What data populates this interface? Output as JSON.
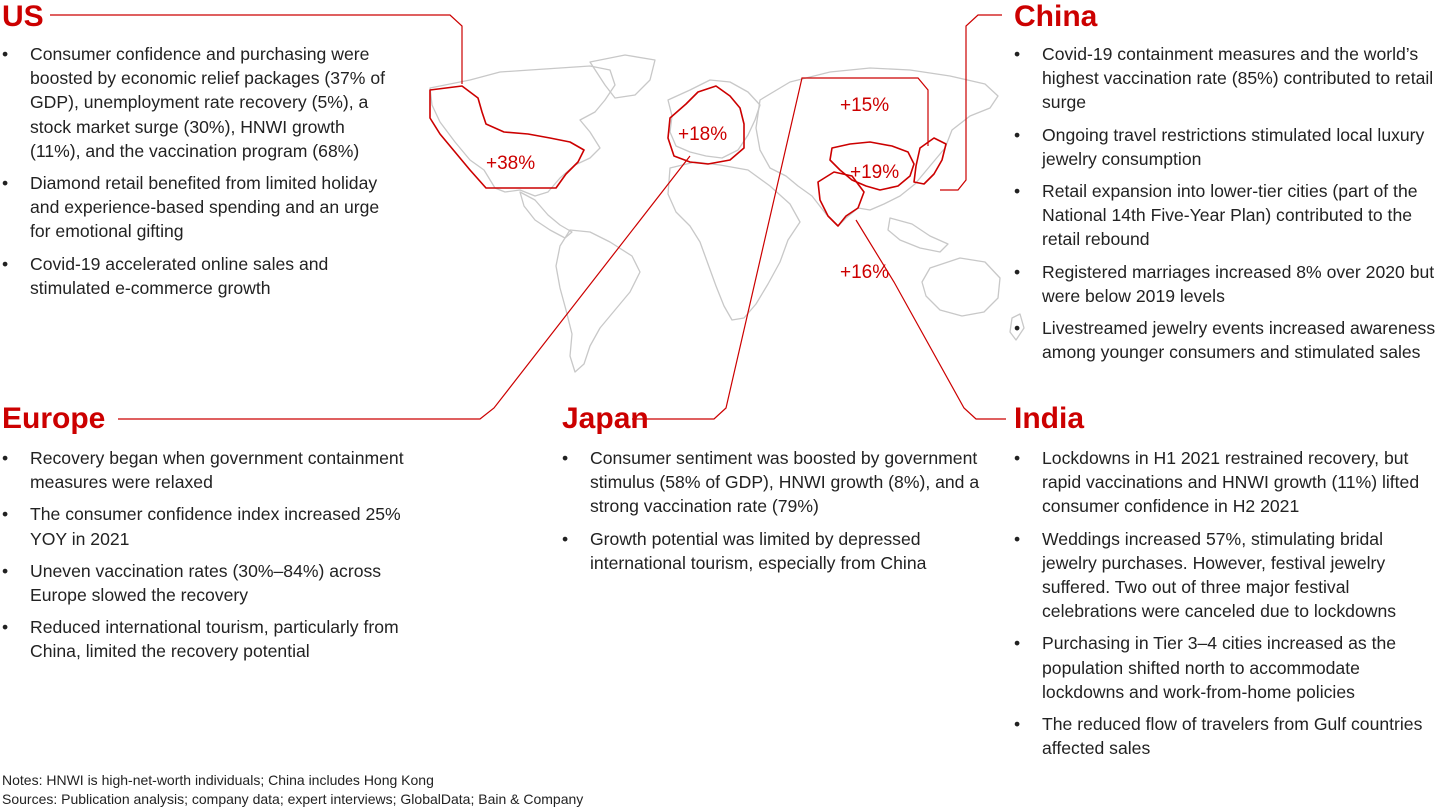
{
  "regions": {
    "us": {
      "title": "US",
      "bullets": [
        "Consumer confidence and purchasing were boosted by economic relief packages (37% of GDP), unemployment rate recovery (5%), a stock market surge (30%), HNWI growth (11%), and the vaccination program (68%)",
        "Diamond retail benefited from limited holiday and experience-based spending and an urge for emotional gifting",
        "Covid-19 accelerated online sales and stimulated e-commerce growth"
      ]
    },
    "europe": {
      "title": "Europe",
      "bullets": [
        "Recovery began when government containment measures were relaxed",
        "The consumer confidence index increased 25% YOY in 2021",
        "Uneven vaccination rates (30%–84%) across Europe slowed the recovery",
        "Reduced international tourism, particularly from China, limited the recovery potential"
      ]
    },
    "japan": {
      "title": "Japan",
      "bullets": [
        "Consumer sentiment was boosted by government stimulus (58% of GDP), HNWI growth (8%), and a strong vaccination rate (79%)",
        "Growth potential was limited by depressed international tourism, especially from China"
      ]
    },
    "china": {
      "title": "China",
      "bullets": [
        "Covid-19 containment measures and the world’s highest vaccination rate (85%) contributed to retail surge",
        "Ongoing travel restrictions stimulated local luxury jewelry consumption",
        "Retail expansion into lower-tier cities (part of the National 14th Five-Year Plan) contributed to the retail rebound",
        "Registered marriages increased 8% over 2020 but were below 2019 levels",
        "Livestreamed jewelry events increased awareness among younger consumers and stimulated sales"
      ]
    },
    "india": {
      "title": "India",
      "bullets": [
        "Lockdowns in H1 2021 restrained recovery, but rapid vaccinations and HNWI growth (11%) lifted consumer confidence in H2 2021",
        "Weddings increased 57%, stimulating bridal jewelry purchases. However, festival jewelry suffered. Two out of three major festival celebrations were canceled due to lockdowns",
        "Purchasing in Tier 3–4 cities increased as the population shifted north to accommodate lockdowns and work-from-home policies",
        "The reduced flow of travelers from Gulf countries affected sales"
      ]
    }
  },
  "map_labels": {
    "us": "+38%",
    "europe": "+18%",
    "japan": "+15%",
    "china": "+19%",
    "india": "+16%"
  },
  "colors": {
    "accent": "#cc0000",
    "map_outline": "#c8c8c8",
    "text": "#222222"
  },
  "footnotes": {
    "notes": "Notes: HNWI is high-net-worth individuals; China includes Hong Kong",
    "sources": "Sources: Publication analysis; company data; expert interviews; GlobalData; Bain & Company"
  }
}
